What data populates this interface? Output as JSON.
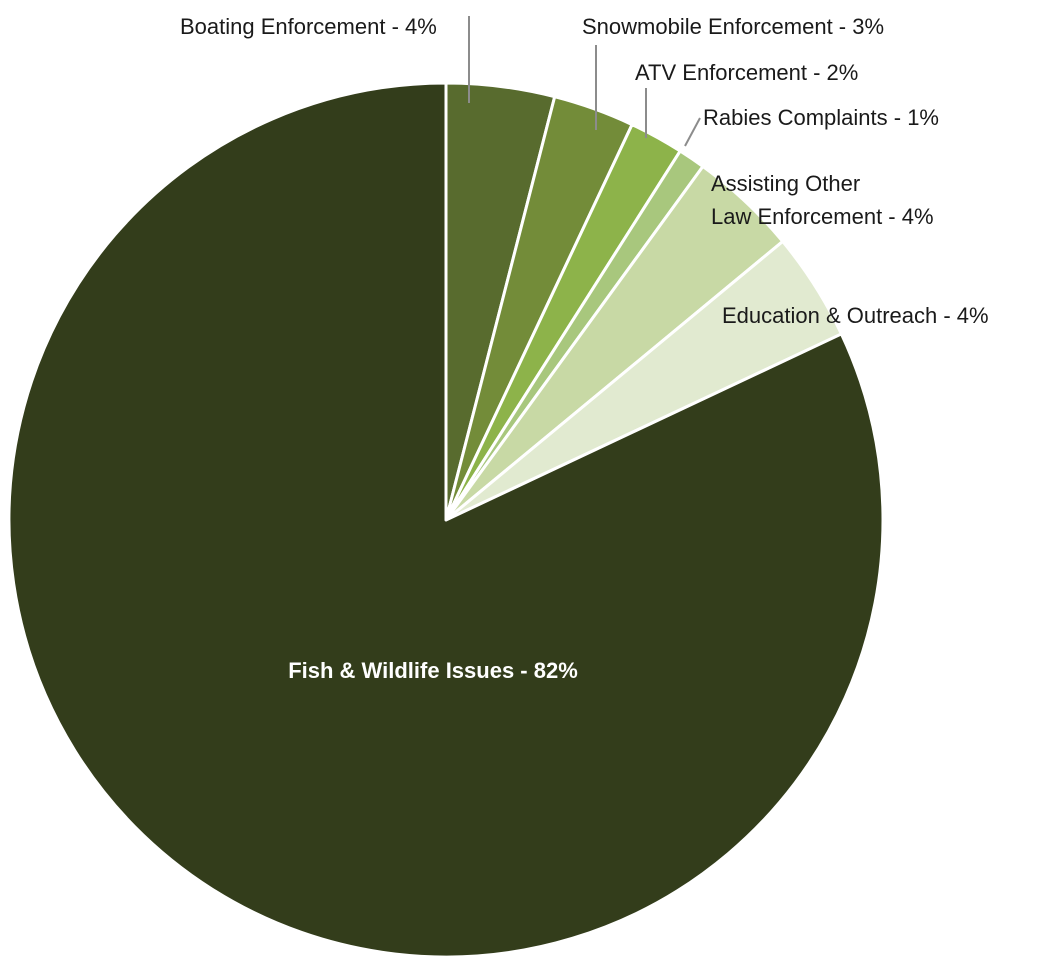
{
  "chart_data": {
    "type": "pie",
    "title": "",
    "start": "12 o'clock",
    "direction": "clockwise",
    "slices": [
      {
        "category": "Boating Enforcement",
        "value": 4,
        "label": "Boating Enforcement - 4%",
        "color": "#586b2e",
        "label_position": "outside"
      },
      {
        "category": "Snowmobile Enforcement",
        "value": 3,
        "label": "Snowmobile Enforcement - 3%",
        "color": "#738c39",
        "label_position": "outside"
      },
      {
        "category": "ATV Enforcement",
        "value": 2,
        "label": "ATV Enforcement - 2%",
        "color": "#8db34a",
        "label_position": "outside"
      },
      {
        "category": "Rabies Complaints",
        "value": 1,
        "label": "Rabies Complaints - 1%",
        "color": "#a8c77d",
        "label_position": "outside"
      },
      {
        "category": "Assisting Other Law Enforcement",
        "value": 4,
        "label": "Assisting Other\nLaw Enforcement - 4%",
        "color": "#c8d9a5",
        "label_position": "outside"
      },
      {
        "category": "Education & Outreach",
        "value": 4,
        "label": "Education & Outreach - 4%",
        "color": "#e1ead0",
        "label_position": "outside"
      },
      {
        "category": "Fish & Wildlife Issues",
        "value": 82,
        "label": "Fish & Wildlife Issues - 82%",
        "color": "#333d1b",
        "label_position": "inside"
      }
    ],
    "slice_border_color": "#ffffff",
    "leader_line_color": "#8c8c8c"
  }
}
